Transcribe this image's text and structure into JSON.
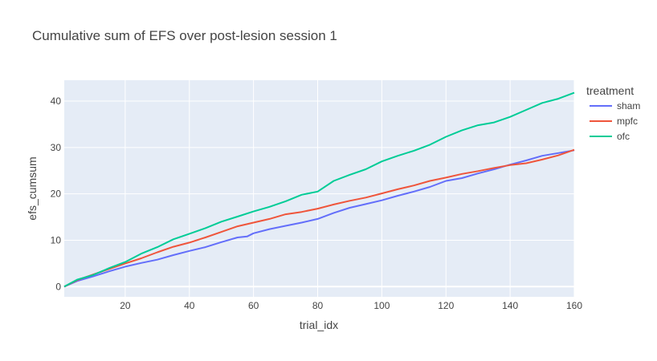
{
  "chart_data": {
    "type": "line",
    "title": "Cumulative sum of EFS over post-lesion session 1",
    "xlabel": "trial_idx",
    "ylabel": "efs_cumsum",
    "xlim": [
      1,
      160
    ],
    "ylim": [
      -2.2,
      44.5
    ],
    "x_ticks": [
      20,
      40,
      60,
      80,
      100,
      120,
      140,
      160
    ],
    "y_ticks": [
      0,
      10,
      20,
      30,
      40
    ],
    "grid": true,
    "legend_title": "treatment",
    "legend_position": "right",
    "series": [
      {
        "name": "sham",
        "color": "#636efa",
        "points": [
          [
            1,
            0
          ],
          [
            5,
            1.2
          ],
          [
            10,
            2.2
          ],
          [
            15,
            3.3
          ],
          [
            20,
            4.3
          ],
          [
            25,
            5.1
          ],
          [
            30,
            5.8
          ],
          [
            35,
            6.8
          ],
          [
            40,
            7.7
          ],
          [
            45,
            8.5
          ],
          [
            50,
            9.6
          ],
          [
            55,
            10.6
          ],
          [
            58,
            10.8
          ],
          [
            60,
            11.5
          ],
          [
            65,
            12.4
          ],
          [
            70,
            13.1
          ],
          [
            75,
            13.8
          ],
          [
            80,
            14.6
          ],
          [
            85,
            15.9
          ],
          [
            90,
            17.0
          ],
          [
            95,
            17.8
          ],
          [
            100,
            18.6
          ],
          [
            105,
            19.6
          ],
          [
            110,
            20.5
          ],
          [
            115,
            21.5
          ],
          [
            120,
            22.8
          ],
          [
            125,
            23.4
          ],
          [
            130,
            24.4
          ],
          [
            135,
            25.3
          ],
          [
            140,
            26.3
          ],
          [
            145,
            27.2
          ],
          [
            150,
            28.2
          ],
          [
            155,
            28.8
          ],
          [
            160,
            29.4
          ]
        ]
      },
      {
        "name": "mpfc",
        "color": "#ef553b",
        "points": [
          [
            1,
            0
          ],
          [
            5,
            1.4
          ],
          [
            10,
            2.6
          ],
          [
            15,
            3.8
          ],
          [
            20,
            5.0
          ],
          [
            25,
            6.1
          ],
          [
            30,
            7.4
          ],
          [
            35,
            8.6
          ],
          [
            40,
            9.5
          ],
          [
            45,
            10.6
          ],
          [
            50,
            11.8
          ],
          [
            55,
            13.0
          ],
          [
            60,
            13.8
          ],
          [
            65,
            14.6
          ],
          [
            70,
            15.6
          ],
          [
            75,
            16.1
          ],
          [
            80,
            16.8
          ],
          [
            85,
            17.7
          ],
          [
            90,
            18.5
          ],
          [
            95,
            19.2
          ],
          [
            100,
            20.1
          ],
          [
            105,
            21.0
          ],
          [
            110,
            21.8
          ],
          [
            115,
            22.8
          ],
          [
            120,
            23.5
          ],
          [
            125,
            24.3
          ],
          [
            130,
            24.9
          ],
          [
            135,
            25.6
          ],
          [
            140,
            26.2
          ],
          [
            145,
            26.6
          ],
          [
            150,
            27.4
          ],
          [
            155,
            28.3
          ],
          [
            160,
            29.5
          ]
        ]
      },
      {
        "name": "ofc",
        "color": "#00cc96",
        "points": [
          [
            1,
            0
          ],
          [
            5,
            1.5
          ],
          [
            10,
            2.5
          ],
          [
            15,
            4.0
          ],
          [
            20,
            5.3
          ],
          [
            25,
            7.1
          ],
          [
            30,
            8.5
          ],
          [
            35,
            10.2
          ],
          [
            40,
            11.4
          ],
          [
            45,
            12.6
          ],
          [
            50,
            14.0
          ],
          [
            55,
            15.1
          ],
          [
            60,
            16.2
          ],
          [
            65,
            17.2
          ],
          [
            70,
            18.4
          ],
          [
            75,
            19.8
          ],
          [
            80,
            20.5
          ],
          [
            85,
            22.8
          ],
          [
            90,
            24.1
          ],
          [
            95,
            25.3
          ],
          [
            100,
            27.0
          ],
          [
            105,
            28.2
          ],
          [
            110,
            29.3
          ],
          [
            115,
            30.6
          ],
          [
            120,
            32.3
          ],
          [
            125,
            33.7
          ],
          [
            130,
            34.8
          ],
          [
            135,
            35.4
          ],
          [
            140,
            36.6
          ],
          [
            145,
            38.1
          ],
          [
            150,
            39.6
          ],
          [
            155,
            40.5
          ],
          [
            160,
            41.8
          ]
        ]
      }
    ]
  }
}
